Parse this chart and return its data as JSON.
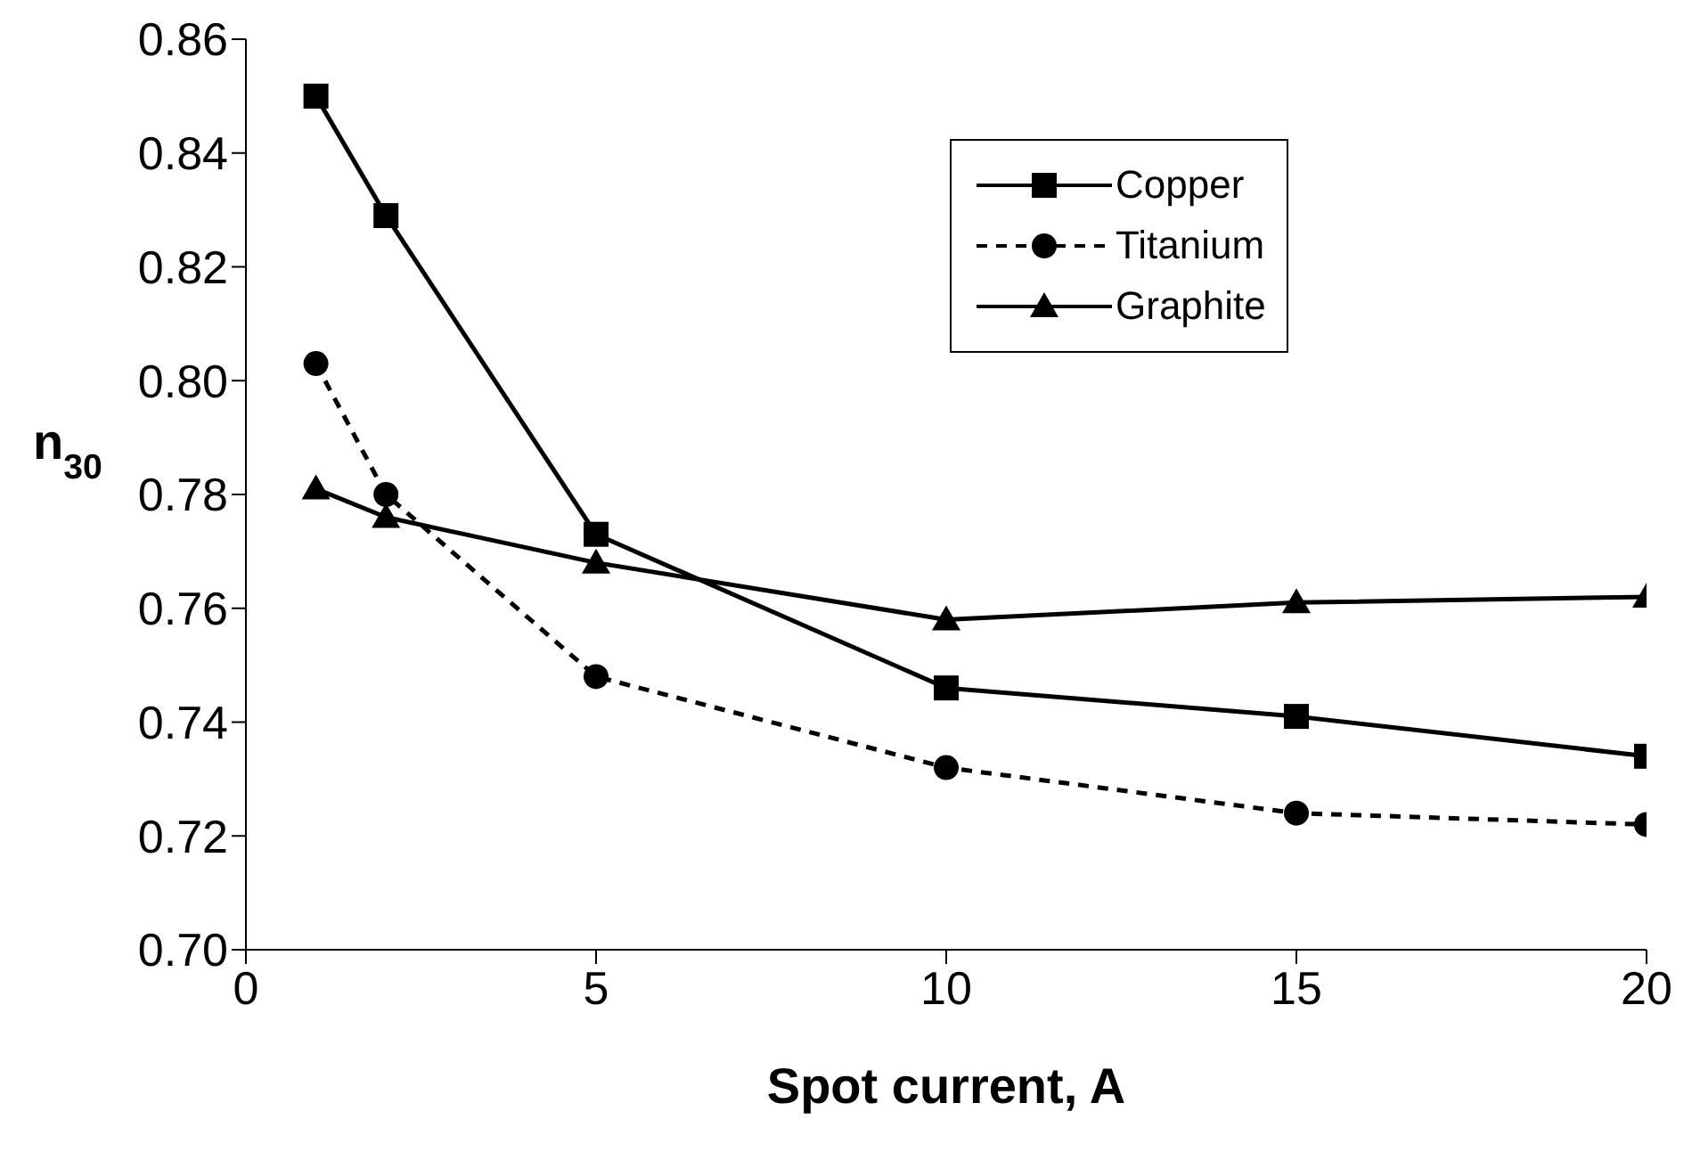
{
  "chart_data": {
    "type": "line",
    "xlabel": "Spot current, A",
    "ylabel": "n$_{30}$",
    "x": [
      1,
      2,
      5,
      10,
      15,
      20
    ],
    "series": [
      {
        "name": "Copper",
        "color": "#000000",
        "marker": "square",
        "line_style": "solid",
        "values": [
          0.85,
          0.829,
          0.773,
          0.746,
          0.741,
          0.734
        ]
      },
      {
        "name": "Titanium",
        "color": "#000000",
        "marker": "circle",
        "line_style": "dashed",
        "values": [
          0.803,
          0.78,
          0.748,
          0.732,
          0.724,
          0.722
        ]
      },
      {
        "name": "Graphite",
        "color": "#000000",
        "marker": "triangle",
        "line_style": "solid",
        "values": [
          0.781,
          0.776,
          0.768,
          0.758,
          0.761,
          0.762
        ]
      }
    ],
    "xlim": [
      0,
      20
    ],
    "xticks": [
      0,
      5,
      10,
      15,
      20
    ],
    "ylim": [
      0.7,
      0.86
    ],
    "yticks": [
      {
        "value": 0.7,
        "label": "0.70"
      },
      {
        "value": 0.72,
        "label": "0.72"
      },
      {
        "value": 0.74,
        "label": "0.74"
      },
      {
        "value": 0.76,
        "label": "0.76"
      },
      {
        "value": 0.78,
        "label": "0.78"
      },
      {
        "value": 0.8,
        "label": "0.80"
      },
      {
        "value": 0.82,
        "label": "0.82"
      },
      {
        "value": 0.84,
        "label": "0.84"
      },
      {
        "value": 0.86,
        "label": "0.86"
      }
    ],
    "grid": false,
    "legend": "top right"
  }
}
